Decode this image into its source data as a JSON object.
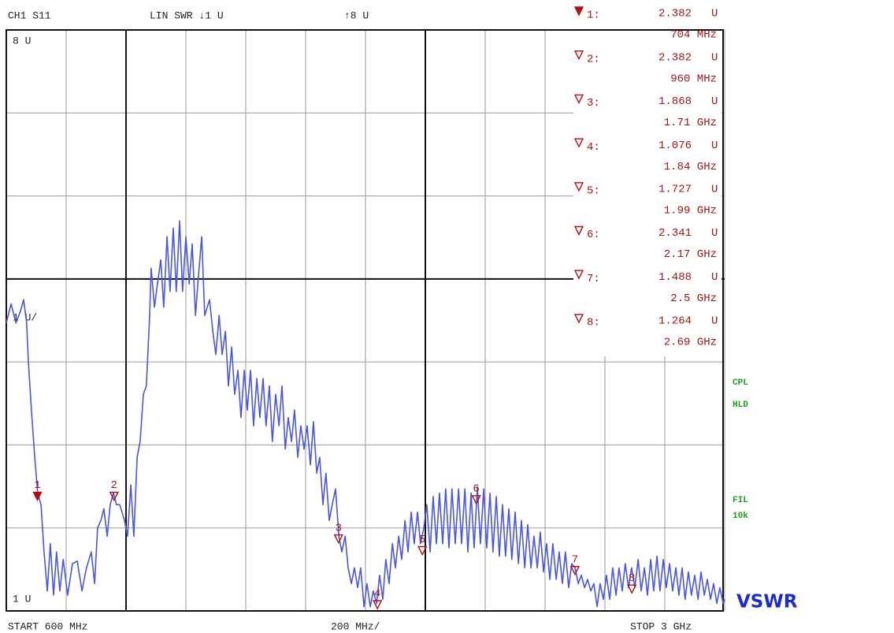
{
  "chart_data": {
    "type": "line",
    "header": {
      "channel": "CH1 S11",
      "format": "LIN SWR ↓1 U",
      "ref_top": "↑8 U"
    },
    "axis_labels": {
      "top": "8 U",
      "scale": "1 U/",
      "bottom": "1 U"
    },
    "footer": {
      "start": "START 600 MHz",
      "span": "200 MHz/",
      "stop": "STOP 3 GHz"
    },
    "status": {
      "cpl": "CPL",
      "hld": "HLD",
      "fil": "FIL",
      "bandwidth": "10k"
    },
    "parameter": "VSWR",
    "xlim": [
      600,
      3000
    ],
    "ylim": [
      1,
      8
    ],
    "xticks": [
      600,
      800,
      1000,
      1200,
      1400,
      1600,
      1800,
      2000,
      2200,
      2400,
      2600,
      2800,
      3000
    ],
    "yticks": [
      1,
      2,
      3,
      4,
      5,
      6,
      7,
      8
    ],
    "major_xticks": [
      1000,
      2000
    ],
    "major_yticks": [
      5
    ],
    "grid": true,
    "series": [
      {
        "color": "#4a56dc",
        "x": [
          600,
          616,
          632,
          647,
          658,
          668,
          674,
          684,
          695,
          705,
          716,
          726,
          737,
          747,
          758,
          768,
          779,
          790,
          805,
          821,
          837,
          853,
          868,
          884,
          895,
          905,
          916,
          926,
          937,
          947,
          958,
          968,
          979,
          995,
          1005,
          1016,
          1026,
          1037,
          1047,
          1058,
          1068,
          1079,
          1084,
          1095,
          1105,
          1116,
          1126,
          1137,
          1147,
          1158,
          1168,
          1179,
          1189,
          1200,
          1211,
          1221,
          1232,
          1242,
          1253,
          1263,
          1279,
          1290,
          1300,
          1311,
          1321,
          1332,
          1342,
          1353,
          1363,
          1374,
          1384,
          1395,
          1405,
          1416,
          1426,
          1437,
          1447,
          1458,
          1468,
          1479,
          1489,
          1500,
          1511,
          1521,
          1532,
          1542,
          1553,
          1563,
          1574,
          1584,
          1595,
          1605,
          1616,
          1626,
          1637,
          1647,
          1658,
          1668,
          1679,
          1689,
          1700,
          1711,
          1721,
          1732,
          1742,
          1753,
          1763,
          1774,
          1784,
          1795,
          1805,
          1816,
          1826,
          1837,
          1847,
          1858,
          1868,
          1879,
          1890,
          1900,
          1911,
          1921,
          1932,
          1942,
          1953,
          1963,
          1974,
          1984,
          1995,
          2005,
          2016,
          2026,
          2037,
          2047,
          2058,
          2068,
          2079,
          2089,
          2100,
          2111,
          2121,
          2132,
          2142,
          2153,
          2163,
          2174,
          2184,
          2195,
          2205,
          2216,
          2226,
          2237,
          2247,
          2258,
          2268,
          2279,
          2289,
          2300,
          2311,
          2321,
          2332,
          2342,
          2353,
          2363,
          2374,
          2384,
          2395,
          2405,
          2416,
          2426,
          2437,
          2447,
          2458,
          2468,
          2479,
          2489,
          2500,
          2511,
          2521,
          2532,
          2542,
          2553,
          2563,
          2574,
          2584,
          2595,
          2605,
          2616,
          2626,
          2637,
          2647,
          2658,
          2668,
          2679,
          2689,
          2700,
          2711,
          2721,
          2732,
          2742,
          2753,
          2763,
          2774,
          2784,
          2795,
          2805,
          2816,
          2826,
          2837,
          2847,
          2858,
          2868,
          2879,
          2889,
          2900,
          2911,
          2921,
          2932,
          2942,
          2953,
          2963,
          2974,
          2984,
          2995,
          3000
        ],
        "values": [
          4.47,
          4.7,
          4.47,
          4.61,
          4.75,
          4.47,
          3.99,
          3.42,
          2.85,
          2.42,
          2.28,
          1.71,
          1.24,
          1.81,
          1.19,
          1.71,
          1.24,
          1.62,
          1.19,
          1.57,
          1.6,
          1.24,
          1.52,
          1.71,
          1.33,
          2.0,
          2.09,
          2.23,
          1.9,
          2.28,
          2.42,
          2.28,
          2.28,
          2.09,
          1.9,
          2.52,
          1.9,
          2.85,
          3.04,
          3.61,
          3.71,
          4.56,
          5.13,
          4.66,
          4.94,
          5.23,
          4.66,
          5.51,
          4.85,
          5.61,
          4.85,
          5.7,
          4.85,
          5.51,
          4.94,
          5.42,
          4.56,
          5.04,
          5.51,
          4.56,
          4.75,
          4.37,
          4.09,
          4.56,
          4.09,
          4.37,
          3.71,
          4.18,
          3.61,
          3.9,
          3.33,
          3.9,
          3.42,
          3.9,
          3.23,
          3.8,
          3.33,
          3.8,
          3.23,
          3.71,
          3.04,
          3.61,
          3.23,
          3.71,
          2.95,
          3.33,
          3.04,
          3.42,
          2.85,
          3.23,
          2.95,
          3.23,
          2.76,
          3.28,
          2.66,
          2.85,
          2.28,
          2.66,
          2.09,
          2.28,
          2.47,
          1.9,
          1.71,
          1.9,
          1.52,
          1.33,
          1.52,
          1.28,
          1.52,
          1.05,
          1.33,
          1.05,
          1.24,
          1.09,
          1.43,
          1.14,
          1.62,
          1.33,
          1.81,
          1.52,
          1.9,
          1.62,
          2.09,
          1.71,
          2.19,
          1.81,
          2.19,
          1.81,
          2.0,
          2.28,
          1.71,
          2.38,
          1.81,
          2.42,
          1.81,
          2.47,
          1.76,
          2.47,
          1.81,
          2.47,
          1.81,
          2.47,
          1.71,
          2.42,
          1.76,
          2.49,
          1.81,
          2.47,
          1.76,
          2.42,
          1.71,
          2.38,
          1.66,
          2.28,
          1.66,
          2.23,
          1.62,
          2.19,
          1.57,
          2.09,
          1.52,
          2.04,
          1.52,
          1.9,
          1.52,
          1.95,
          1.47,
          1.81,
          1.38,
          1.81,
          1.38,
          1.71,
          1.33,
          1.71,
          1.28,
          1.57,
          1.52,
          1.33,
          1.43,
          1.28,
          1.38,
          1.24,
          1.33,
          1.05,
          1.33,
          1.14,
          1.43,
          1.14,
          1.52,
          1.19,
          1.52,
          1.24,
          1.57,
          1.28,
          1.52,
          1.28,
          1.62,
          1.24,
          1.52,
          1.19,
          1.62,
          1.24,
          1.66,
          1.24,
          1.62,
          1.28,
          1.57,
          1.24,
          1.52,
          1.19,
          1.52,
          1.14,
          1.47,
          1.19,
          1.43,
          1.14,
          1.47,
          1.19,
          1.38,
          1.14,
          1.33,
          1.09,
          1.28,
          1.09,
          1.14
        ]
      }
    ],
    "marker_color": "#b01010",
    "marker_unit": "U",
    "markers": [
      {
        "name": "1",
        "row_label": "1:",
        "value": 2.382,
        "frequency": 704,
        "frequency_label": "704 MHz",
        "active": true
      },
      {
        "name": "2",
        "row_label": "2:",
        "value": 2.382,
        "frequency": 960,
        "frequency_label": "960 MHz",
        "active": false
      },
      {
        "name": "3",
        "row_label": "3:",
        "value": 1.868,
        "frequency": 1710,
        "frequency_label": "1.71 GHz",
        "active": false
      },
      {
        "name": "4",
        "row_label": "4:",
        "value": 1.076,
        "frequency": 1840,
        "frequency_label": "1.84 GHz",
        "active": false
      },
      {
        "name": "5",
        "row_label": "5:",
        "value": 1.727,
        "frequency": 1990,
        "frequency_label": "1.99 GHz",
        "active": false
      },
      {
        "name": "6",
        "row_label": "6:",
        "value": 2.341,
        "frequency": 2170,
        "frequency_label": "2.17 GHz",
        "active": false
      },
      {
        "name": "7",
        "row_label": "7:",
        "value": 1.488,
        "frequency": 2500,
        "frequency_label": "2.5 GHz",
        "active": false
      },
      {
        "name": "8",
        "row_label": "8:",
        "value": 1.264,
        "frequency": 2690,
        "frequency_label": "2.69 GHz",
        "active": false
      }
    ]
  }
}
